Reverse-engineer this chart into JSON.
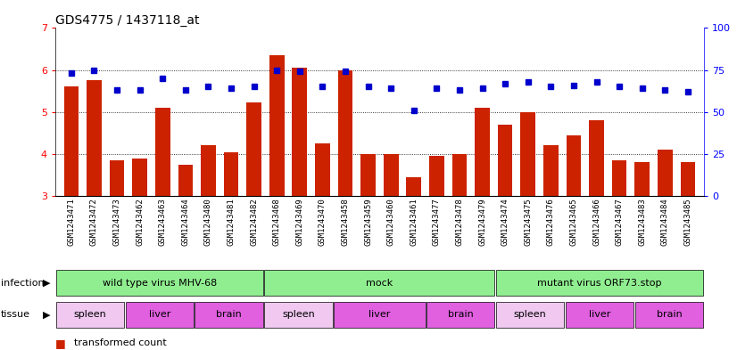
{
  "title": "GDS4775 / 1437118_at",
  "samples": [
    "GSM1243471",
    "GSM1243472",
    "GSM1243473",
    "GSM1243462",
    "GSM1243463",
    "GSM1243464",
    "GSM1243480",
    "GSM1243481",
    "GSM1243482",
    "GSM1243468",
    "GSM1243469",
    "GSM1243470",
    "GSM1243458",
    "GSM1243459",
    "GSM1243460",
    "GSM1243461",
    "GSM1243477",
    "GSM1243478",
    "GSM1243479",
    "GSM1243474",
    "GSM1243475",
    "GSM1243476",
    "GSM1243465",
    "GSM1243466",
    "GSM1243467",
    "GSM1243483",
    "GSM1243484",
    "GSM1243485"
  ],
  "bar_values": [
    5.6,
    5.75,
    3.85,
    3.9,
    5.1,
    3.75,
    4.22,
    4.05,
    5.22,
    6.35,
    6.05,
    4.25,
    6.0,
    4.0,
    4.0,
    3.45,
    3.95,
    4.0,
    5.1,
    4.7,
    5.0,
    4.2,
    4.45,
    4.8,
    3.85,
    3.8,
    4.1,
    3.8
  ],
  "dot_values": [
    73,
    75,
    63,
    63,
    70,
    63,
    65,
    64,
    65,
    75,
    74,
    65,
    74,
    65,
    64,
    51,
    64,
    63,
    64,
    67,
    68,
    65,
    66,
    68,
    65,
    64,
    63,
    62
  ],
  "infection_groups": [
    {
      "label": "wild type virus MHV-68",
      "start": 0,
      "end": 9
    },
    {
      "label": "mock",
      "start": 9,
      "end": 19
    },
    {
      "label": "mutant virus ORF73.stop",
      "start": 19,
      "end": 28
    }
  ],
  "tissue_groups": [
    {
      "label": "spleen",
      "start": 0,
      "end": 3,
      "color": "#F0C8F0"
    },
    {
      "label": "liver",
      "start": 3,
      "end": 6,
      "color": "#E060E0"
    },
    {
      "label": "brain",
      "start": 6,
      "end": 9,
      "color": "#E060E0"
    },
    {
      "label": "spleen",
      "start": 9,
      "end": 12,
      "color": "#F0C8F0"
    },
    {
      "label": "liver",
      "start": 12,
      "end": 16,
      "color": "#E060E0"
    },
    {
      "label": "brain",
      "start": 16,
      "end": 19,
      "color": "#E060E0"
    },
    {
      "label": "spleen",
      "start": 19,
      "end": 22,
      "color": "#F0C8F0"
    },
    {
      "label": "liver",
      "start": 22,
      "end": 25,
      "color": "#E060E0"
    },
    {
      "label": "brain",
      "start": 25,
      "end": 28,
      "color": "#E060E0"
    }
  ],
  "ylim_left": [
    3,
    7
  ],
  "ylim_right": [
    0,
    100
  ],
  "bar_color": "#CC2200",
  "dot_color": "#0000CC",
  "plot_bg": "#FFFFFF",
  "xticklabel_bg": "#D8D8D8",
  "infection_color": "#90EE90",
  "grid_color": "#000000"
}
